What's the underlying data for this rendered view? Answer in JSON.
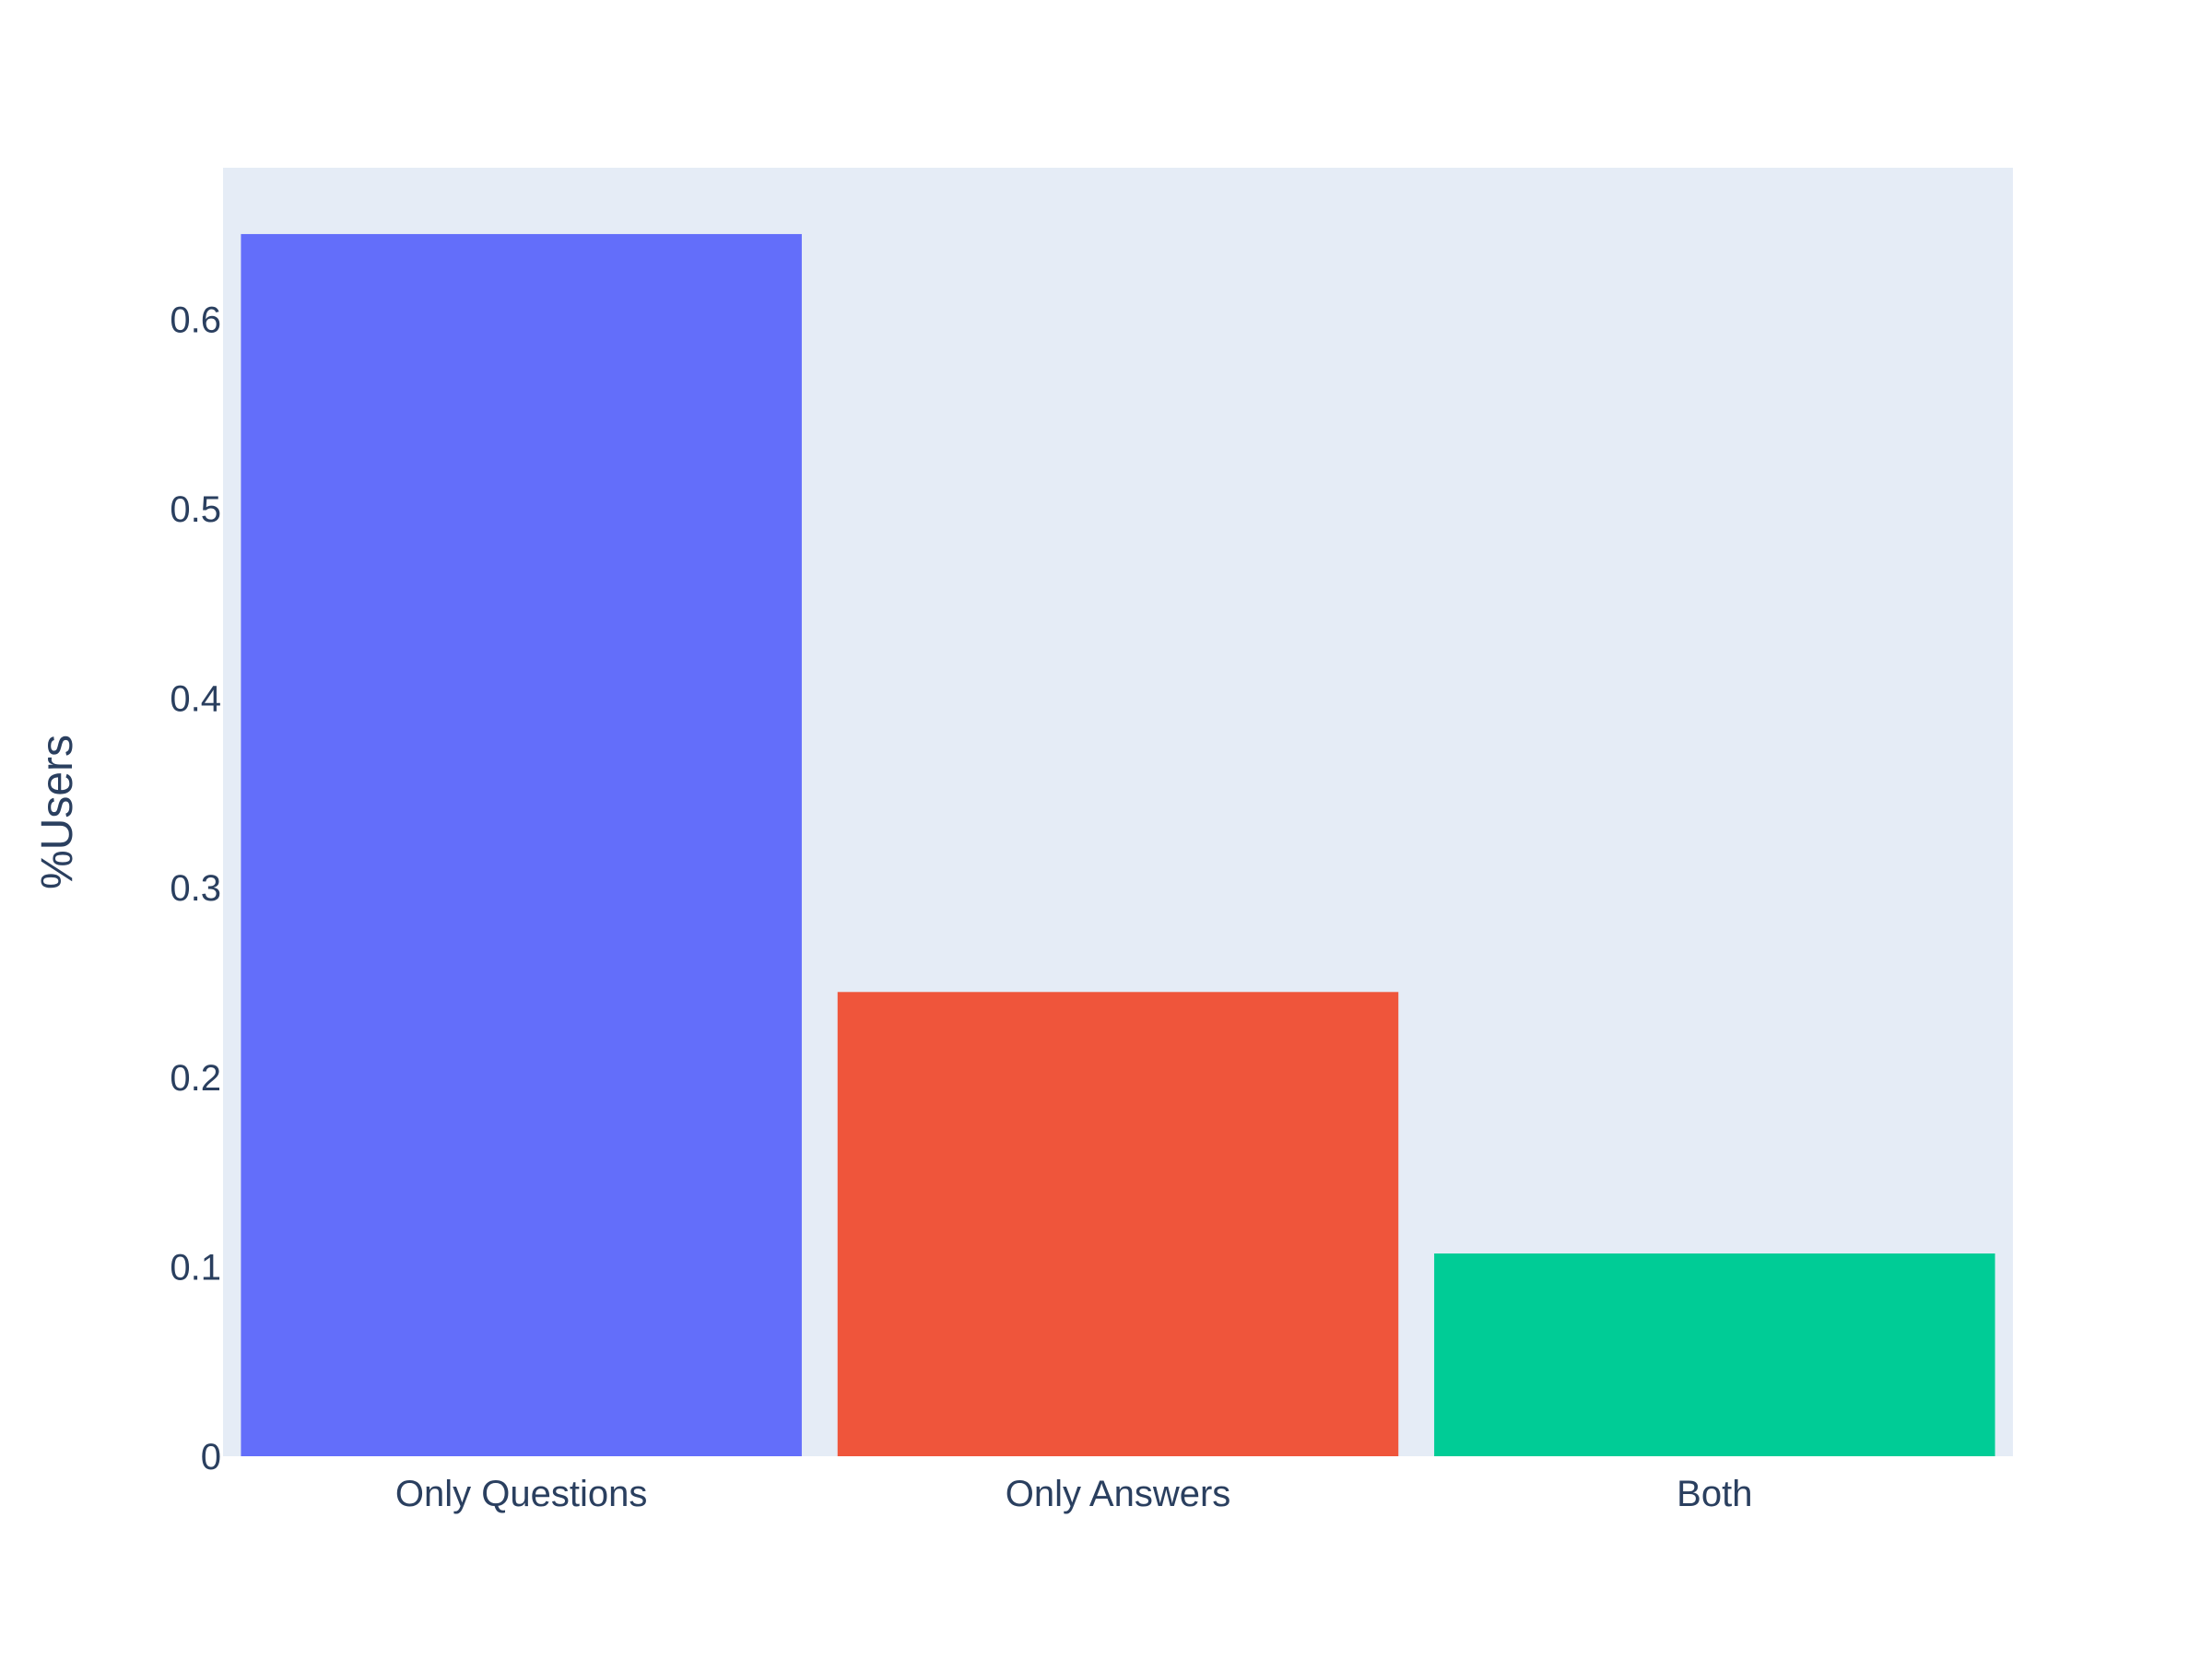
{
  "chart_data": {
    "type": "bar",
    "categories": [
      "Only Questions",
      "Only Answers",
      "Both"
    ],
    "values": [
      0.645,
      0.245,
      0.107
    ],
    "series": [
      {
        "name": "",
        "values": [
          0.645,
          0.245,
          0.107
        ]
      }
    ],
    "title": "",
    "xlabel": "",
    "ylabel": "%Users",
    "ylim": [
      0,
      0.68
    ],
    "yticks": [
      0,
      0.1,
      0.2,
      0.3,
      0.4,
      0.5,
      0.6
    ],
    "ytick_labels": [
      "0",
      "0.1",
      "0.2",
      "0.3",
      "0.4",
      "0.5",
      "0.6"
    ],
    "grid": false,
    "legend": "none",
    "colors": {
      "plot_background": "#e5ecf6",
      "paper_background": "#ffffff",
      "text": "#2a3f5f",
      "bars": [
        "#636efa",
        "#ef553b",
        "#00cc96"
      ]
    }
  }
}
